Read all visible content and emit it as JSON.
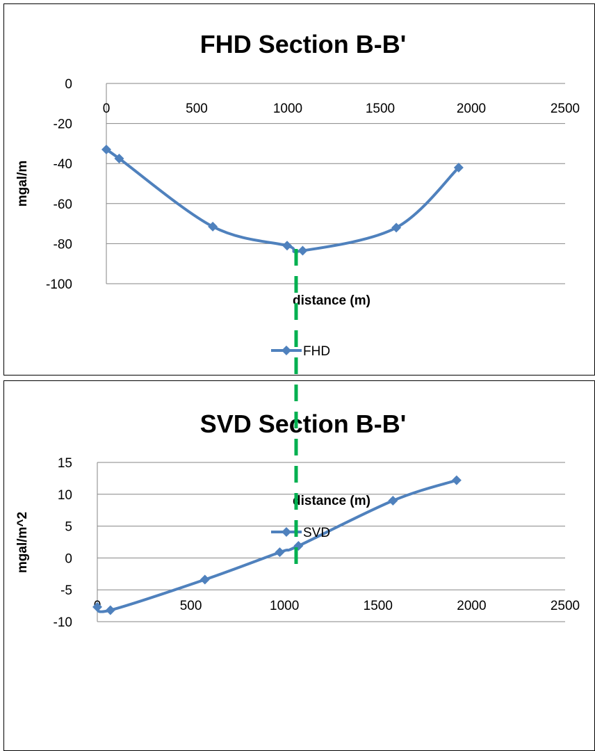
{
  "chart_data": [
    {
      "type": "line",
      "title": "FHD Section B-B'",
      "xlabel": "distance (m)",
      "ylabel": "mgal/m",
      "xlim": [
        0,
        2500
      ],
      "ylim": [
        -100,
        0
      ],
      "xticks": [
        0,
        500,
        1000,
        1500,
        2000,
        2500
      ],
      "yticks": [
        0,
        -20,
        -40,
        -60,
        -80,
        -100
      ],
      "grid": "horizontal",
      "legend_position": "bottom",
      "series": [
        {
          "name": "FHD",
          "color": "#4F81BD",
          "marker": "diamond",
          "points": [
            {
              "x": 0,
              "y": -33
            },
            {
              "x": 70,
              "y": -37.5
            },
            {
              "x": 580,
              "y": -71.5
            },
            {
              "x": 985,
              "y": -81
            },
            {
              "x": 1070,
              "y": -83.5
            },
            {
              "x": 1580,
              "y": -72
            },
            {
              "x": 1920,
              "y": -42
            }
          ]
        }
      ]
    },
    {
      "type": "line",
      "title": "SVD Section B-B'",
      "xlabel": "distance (m)",
      "ylabel": "mgal/m^2",
      "xlim": [
        0,
        2500
      ],
      "ylim": [
        -10,
        15
      ],
      "xticks": [
        0,
        500,
        1000,
        1500,
        2000,
        2500
      ],
      "yticks": [
        15,
        10,
        5,
        0,
        -5,
        -10
      ],
      "grid": "horizontal",
      "legend_position": "bottom",
      "series": [
        {
          "name": "SVD",
          "color": "#4F81BD",
          "marker": "diamond",
          "points": [
            {
              "x": 0,
              "y": -7.7
            },
            {
              "x": 70,
              "y": -8.2
            },
            {
              "x": 575,
              "y": -3.4
            },
            {
              "x": 975,
              "y": 0.9
            },
            {
              "x": 1075,
              "y": 1.9
            },
            {
              "x": 1580,
              "y": 9.0
            },
            {
              "x": 1920,
              "y": 12.2
            }
          ]
        }
      ]
    }
  ],
  "annotations": {
    "marker_line_color": "#00B050"
  }
}
